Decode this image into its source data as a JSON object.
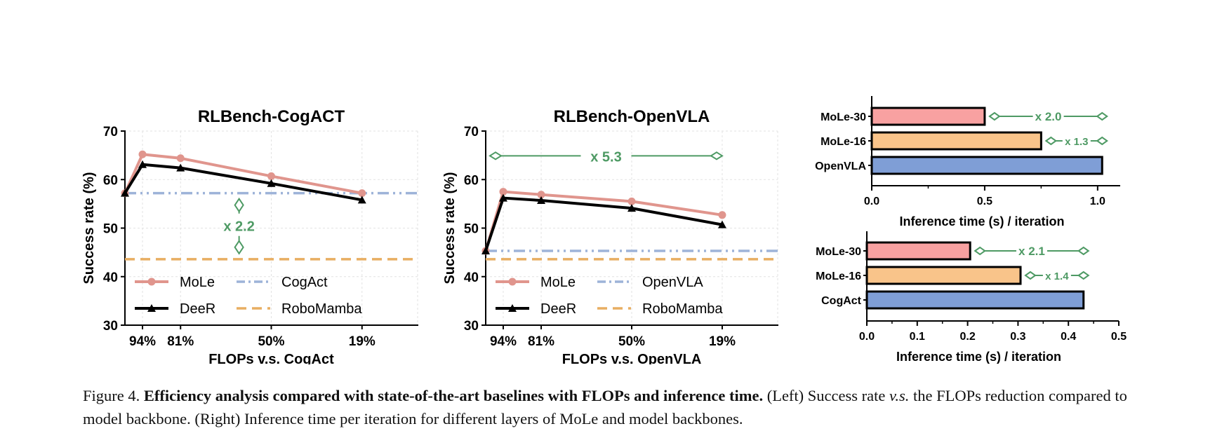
{
  "caption": {
    "label": "Figure 4.",
    "bold": "Efficiency analysis compared with state-of-the-art baselines with FLOPs and inference time.",
    "rest_a": " (Left) Success rate ",
    "vs": "v.s.",
    "rest_b": " the FLOPs reduction compared to model backbone. (Right) Inference time per iteration for different layers of MoLe and model backbones."
  },
  "colors": {
    "mole": "#e0958d",
    "deer": "#000000",
    "backbone": "#9db3d8",
    "robomamba": "#e8ae62",
    "annot": "#4e9a64",
    "bar_mole30": "#f8a1a1",
    "bar_mole16": "#f9c48a",
    "bar_backbone": "#7f9ed6"
  },
  "chart_data": [
    {
      "type": "line",
      "title": "RLBench-CogACT",
      "xlabel": "FLOPs v.s. CogAct",
      "ylabel": "Success rate (%)",
      "xlim": [
        0,
        100
      ],
      "ylim": [
        30,
        70
      ],
      "yticks": [
        30,
        40,
        50,
        60,
        70
      ],
      "xticks": [
        {
          "pos": 6,
          "label": "94%"
        },
        {
          "pos": 19,
          "label": "81%"
        },
        {
          "pos": 50,
          "label": "50%"
        },
        {
          "pos": 81,
          "label": "19%"
        }
      ],
      "series": [
        {
          "name": "MoLe",
          "x": [
            0,
            6,
            19,
            50,
            81
          ],
          "values": [
            57.2,
            65.2,
            64.4,
            60.7,
            57.2
          ]
        },
        {
          "name": "DeeR",
          "x": [
            0,
            6,
            19,
            50,
            81
          ],
          "values": [
            57.2,
            63.1,
            62.4,
            59.2,
            55.8
          ]
        }
      ],
      "hlines": [
        {
          "name": "CogAct",
          "value": 57.2
        },
        {
          "name": "RoboMamba",
          "value": 43.6
        }
      ],
      "annotation": {
        "text": "x 2.2",
        "from": 43.6,
        "to": 57.2
      },
      "legend": "lower-left"
    },
    {
      "type": "line",
      "title": "RLBench-OpenVLA",
      "xlabel": "FLOPs v.s. OpenVLA",
      "ylabel": "Success rate (%)",
      "xlim": [
        0,
        100
      ],
      "ylim": [
        30,
        70
      ],
      "yticks": [
        30,
        40,
        50,
        60,
        70
      ],
      "xticks": [
        {
          "pos": 6,
          "label": "94%"
        },
        {
          "pos": 19,
          "label": "81%"
        },
        {
          "pos": 50,
          "label": "50%"
        },
        {
          "pos": 81,
          "label": "19%"
        }
      ],
      "series": [
        {
          "name": "MoLe",
          "x": [
            0,
            6,
            19,
            50,
            81
          ],
          "values": [
            45.3,
            57.5,
            56.9,
            55.5,
            52.7
          ]
        },
        {
          "name": "DeeR",
          "x": [
            0,
            6,
            19,
            50,
            81
          ],
          "values": [
            45.3,
            56.2,
            55.7,
            54.1,
            50.7
          ]
        }
      ],
      "hlines": [
        {
          "name": "OpenVLA",
          "value": 45.3
        },
        {
          "name": "RoboMamba",
          "value": 43.6
        }
      ],
      "annotation": {
        "text": "x 5.3",
        "value": 64.9,
        "from_x": 0,
        "to_x": 81
      },
      "legend": "lower-left"
    },
    {
      "type": "bar",
      "orientation": "horizontal",
      "xlabel": "Inference time (s) / iteration",
      "xlim": [
        0,
        1.1
      ],
      "xticks": [
        "0.0",
        "0.5",
        "1.0"
      ],
      "categories": [
        "MoLe-30",
        "MoLe-16",
        "OpenVLA"
      ],
      "values": [
        0.5,
        0.75,
        1.02
      ],
      "speedups": [
        "x 2.0",
        "x 1.3"
      ]
    },
    {
      "type": "bar",
      "orientation": "horizontal",
      "xlabel": "Inference time (s) / iteration",
      "xlim": [
        0,
        0.5
      ],
      "xticks": [
        "0.0",
        "0.1",
        "0.2",
        "0.3",
        "0.4",
        "0.5"
      ],
      "categories": [
        "MoLe-30",
        "MoLe-16",
        "CogAct"
      ],
      "values": [
        0.205,
        0.305,
        0.43
      ],
      "speedups": [
        "x 2.1",
        "x 1.4"
      ]
    }
  ]
}
